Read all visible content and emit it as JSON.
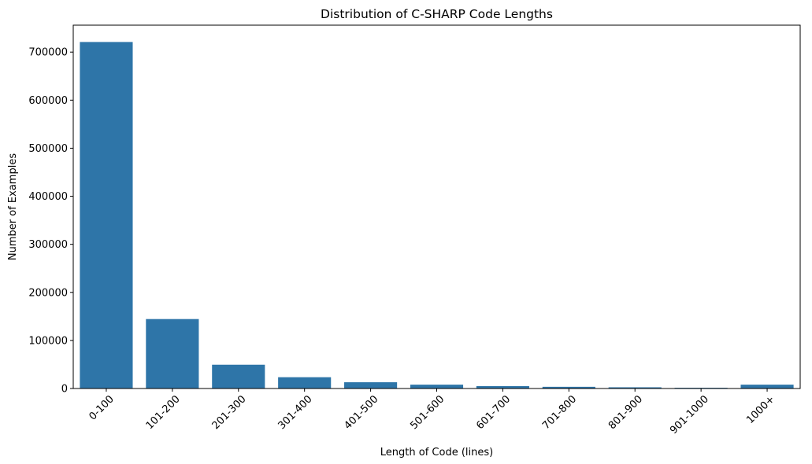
{
  "chart_data": {
    "type": "bar",
    "title": "Distribution of C-SHARP Code Lengths",
    "xlabel": "Length of Code (lines)",
    "ylabel": "Number of Examples",
    "categories": [
      "0-100",
      "101-200",
      "201-300",
      "301-400",
      "401-500",
      "501-600",
      "601-700",
      "701-800",
      "801-900",
      "901-1000",
      "1000+"
    ],
    "values": [
      721000,
      144500,
      49500,
      23500,
      13000,
      8000,
      5000,
      3500,
      2500,
      1500,
      8000
    ],
    "ylim": [
      0,
      756000
    ],
    "yticks": [
      0,
      100000,
      200000,
      300000,
      400000,
      500000,
      600000,
      700000
    ],
    "ytick_labels": [
      "0",
      "100000",
      "200000",
      "300000",
      "400000",
      "500000",
      "600000",
      "700000"
    ],
    "grid": false,
    "bar_color": "#2e75a8"
  }
}
